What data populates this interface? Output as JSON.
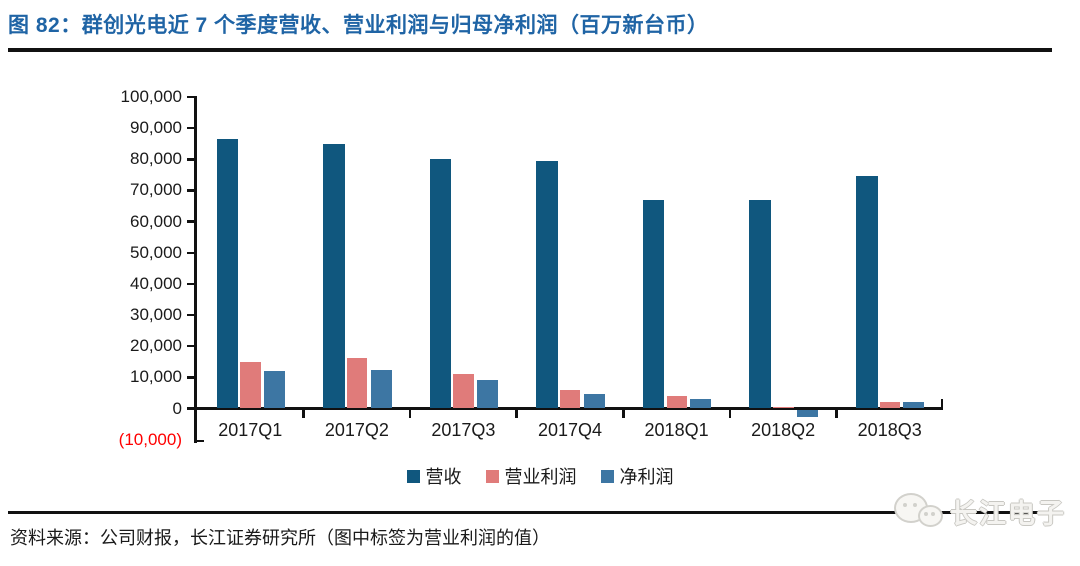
{
  "header": {
    "title": "图 82：群创光电近 7 个季度营收、营业利润与归母净利润（百万新台币）"
  },
  "chart_data": {
    "type": "bar",
    "title": "群创光电近 7 个季度营收、营业利润与归母净利润（百万新台币）",
    "categories": [
      "2017Q1",
      "2017Q2",
      "2017Q3",
      "2017Q4",
      "2018Q1",
      "2018Q2",
      "2018Q3"
    ],
    "series": [
      {
        "name": "营收",
        "color": "#10577E",
        "values": [
          86500,
          85000,
          80000,
          79500,
          67000,
          67000,
          74500
        ]
      },
      {
        "name": "营业利润",
        "color": "#E07B7A",
        "values": [
          15000,
          16200,
          11200,
          5800,
          4000,
          600,
          2100
        ]
      },
      {
        "name": "净利润",
        "color": "#3D76A3",
        "values": [
          12000,
          12400,
          9100,
          4500,
          3100,
          -2400,
          2000
        ]
      }
    ],
    "ylim": [
      -10000,
      100000
    ],
    "ytick_step": 10000,
    "grid": false,
    "legend_position": "bottom",
    "axis_color": "#111111",
    "negative_label_color": "#FF0000"
  },
  "footer": {
    "source_text": "资料来源：公司财报，长江证券研究所（图中标签为营业利润的值）",
    "watermark_text": "长江电子"
  }
}
